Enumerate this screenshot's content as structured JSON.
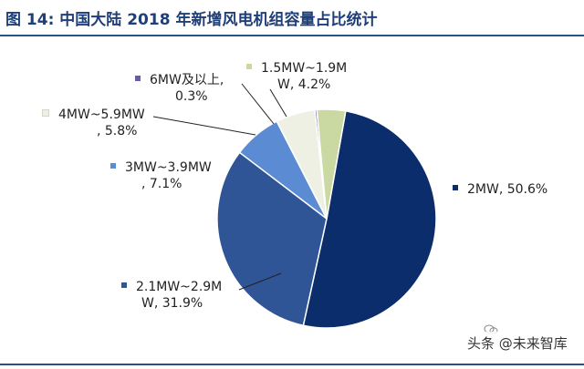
{
  "title": "图 14: 中国大陆 2018 年新增风电机组容量占比统计",
  "watermark": "头条 @未来智库",
  "chart_data": {
    "type": "pie",
    "slices": [
      {
        "label": "2MW, 50.6%",
        "value": 50.6,
        "color": "#0c2d6b"
      },
      {
        "label": "2.1MW~2.9MW, 31.9%",
        "value": 31.9,
        "color": "#2f5597"
      },
      {
        "label": "3MW~3.9MW, 7.1%",
        "value": 7.1,
        "color": "#5b8bd3"
      },
      {
        "label": "4MW~5.9MW, 5.8%",
        "value": 5.8,
        "color": "#eef0e3"
      },
      {
        "label": "6MW及以上, 0.3%",
        "value": 0.3,
        "color": "#6b5aa6"
      },
      {
        "label": "1.5MW~1.9MW, 4.2%",
        "value": 4.2,
        "color": "#cad8a1"
      }
    ]
  },
  "labels": {
    "l2mw": "2MW, 50.6%",
    "l21_a": "2.1MW~2.9M",
    "l21_b": "W, 31.9%",
    "l3_a": "3MW~3.9MW",
    "l3_b": ", 7.1%",
    "l4_a": "4MW~5.9MW",
    "l4_b": ", 5.8%",
    "l6_a": "6MW及以上,",
    "l6_b": "0.3%",
    "l15_a": "1.5MW~1.9M",
    "l15_b": "W, 4.2%"
  }
}
